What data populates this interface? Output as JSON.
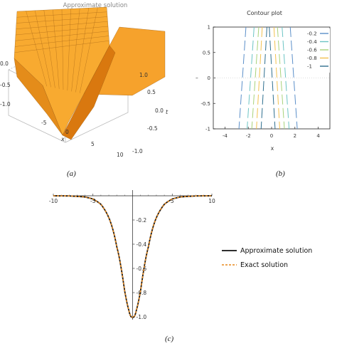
{
  "captions": {
    "a": "(a)",
    "b": "(b)",
    "c": "(c)"
  },
  "colors": {
    "surface_light": "#f8aa30",
    "surface_dark": "#d9780f",
    "mesh": "#9a5a10",
    "exact": "#e8891c",
    "approx": "#111111"
  },
  "chart_data": [
    {
      "id": "a",
      "type": "surface",
      "title": "Approximate solution",
      "xlabel": "x",
      "ylabel": "t",
      "x_ticks": [
        "-5",
        "0",
        "5",
        "10"
      ],
      "t_ticks": [
        "1.0",
        "0.5",
        "0.0",
        "-0.5",
        "-1.0"
      ],
      "z_ticks": [
        "0.0",
        "-0.5",
        "-1.0"
      ],
      "xlim": [
        -10,
        10
      ],
      "tlim": [
        -1,
        1
      ],
      "zlim": [
        -1,
        0
      ],
      "grid": false
    },
    {
      "id": "b",
      "type": "contour",
      "title": "Contour plot",
      "xlabel": "x",
      "ylabel": "t",
      "x_ticks": [
        "-4",
        "-2",
        "0",
        "2",
        "4"
      ],
      "y_ticks": [
        "1",
        "0.5",
        "0",
        "-0.5",
        "-1"
      ],
      "xlim": [
        -5,
        5
      ],
      "ylim": [
        -1,
        1
      ],
      "legend_position": "top-right",
      "levels": [
        {
          "label": "-0.2",
          "color": "#5b8fc9",
          "x_bottom": 2.2,
          "x_top": 1.6
        },
        {
          "label": "-0.4",
          "color": "#6cc4c4",
          "x_bottom": 1.5,
          "x_top": 0.9
        },
        {
          "label": "-0.6",
          "color": "#a8d27a",
          "x_bottom": 1.1,
          "x_top": 0.5
        },
        {
          "label": "-0.8",
          "color": "#f2c14e",
          "x_bottom": 0.7,
          "x_top": 0.2
        },
        {
          "label": "-1",
          "color": "#2f6f8f",
          "x_bottom": 0.3,
          "x_top": -0.2
        }
      ]
    },
    {
      "id": "c",
      "type": "line",
      "xlim": [
        -10,
        10
      ],
      "ylim": [
        -1,
        0
      ],
      "x_ticks": [
        "-10",
        "-5",
        "5",
        "10"
      ],
      "y_ticks": [
        "-0.2",
        "-0.4",
        "-0.6",
        "-0.8",
        "-1.0"
      ],
      "legend_position": "right",
      "series": [
        {
          "name": "Approximate solution",
          "style": "solid",
          "color": "#111111",
          "x": [
            -10,
            -8,
            -6,
            -5,
            -4,
            -3,
            -2,
            -1.5,
            -1,
            -0.5,
            0,
            0.5,
            1,
            1.5,
            2,
            3,
            4,
            5,
            6,
            8,
            10
          ],
          "y": [
            -0.0002,
            -0.0013,
            -0.0099,
            -0.0266,
            -0.0707,
            -0.1807,
            -0.42,
            -0.5757,
            -0.7864,
            -0.9401,
            -1,
            -0.9401,
            -0.7864,
            -0.5757,
            -0.42,
            -0.1807,
            -0.0707,
            -0.0266,
            -0.0099,
            -0.0013,
            -0.0002
          ]
        },
        {
          "name": "Exact solution",
          "style": "dashed",
          "color": "#e8891c",
          "x": [
            -10,
            -8,
            -6,
            -5,
            -4,
            -3,
            -2,
            -1.5,
            -1,
            -0.5,
            0,
            0.5,
            1,
            1.5,
            2,
            3,
            4,
            5,
            6,
            8,
            10
          ],
          "y": [
            -0.0002,
            -0.0013,
            -0.0099,
            -0.0266,
            -0.0707,
            -0.1807,
            -0.42,
            -0.5757,
            -0.7864,
            -0.9401,
            -1,
            -0.9401,
            -0.7864,
            -0.5757,
            -0.42,
            -0.1807,
            -0.0707,
            -0.0266,
            -0.0099,
            -0.0013,
            -0.0002
          ]
        }
      ]
    }
  ]
}
